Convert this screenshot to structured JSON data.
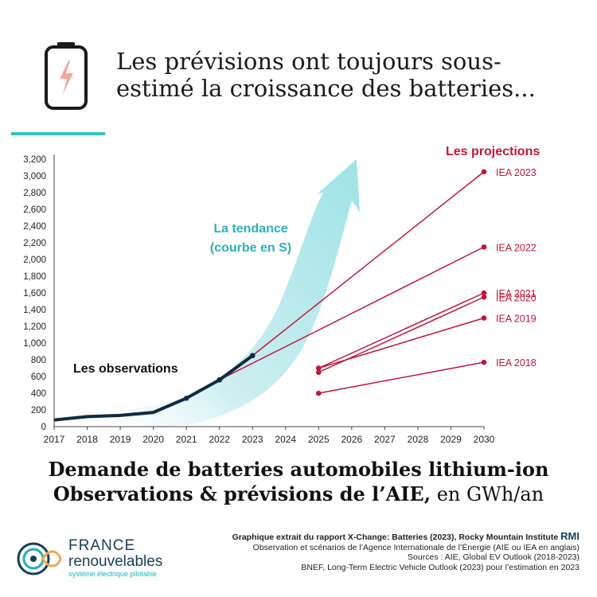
{
  "header": {
    "title_line1": "Les prévisions ont toujours sous-",
    "title_line2": "estimé la croissance des batteries..."
  },
  "chart_data": {
    "type": "line",
    "title": "",
    "xlabel": "",
    "ylabel": "",
    "x_ticks": [
      "2017",
      "2018",
      "2019",
      "2020",
      "2021",
      "2022",
      "2023",
      "2024",
      "2025",
      "2026",
      "2027",
      "2028",
      "2029",
      "2030"
    ],
    "y_ticks": [
      "0",
      "200",
      "400",
      "600",
      "800",
      "1,000",
      "1,200",
      "1,400",
      "1,600",
      "1,800",
      "2,000",
      "2,200",
      "2,400",
      "2,600",
      "2,800",
      "3,000",
      "3,200"
    ],
    "ylim": [
      0,
      3200
    ],
    "xlim": [
      2017,
      2030
    ],
    "grid": false,
    "observations": {
      "label": "Les observations",
      "color": "#0f2a44",
      "x": [
        2017,
        2018,
        2019,
        2020,
        2021,
        2022,
        2023
      ],
      "y": [
        80,
        120,
        135,
        170,
        340,
        560,
        850
      ]
    },
    "trend": {
      "label_line1": "La tendance",
      "label_line2": "(courbe en S)",
      "color": "#7fdbe0"
    },
    "projections_label": "Les projections",
    "projection_color": "#c0173c",
    "projections": [
      {
        "name": "IEA 2023",
        "x": [
          2023,
          2030
        ],
        "y": [
          850,
          3050
        ]
      },
      {
        "name": "IEA 2022",
        "x": [
          2022,
          2030
        ],
        "y": [
          560,
          2150
        ]
      },
      {
        "name": "IEA 2021",
        "x": [
          2025,
          2030
        ],
        "y": [
          700,
          1600
        ]
      },
      {
        "name": "IEA 2020",
        "x": [
          2025,
          2030
        ],
        "y": [
          650,
          1550
        ]
      },
      {
        "name": "IEA 2019",
        "x": [
          2025,
          2030
        ],
        "y": [
          700,
          1300
        ]
      },
      {
        "name": "IEA 2018",
        "x": [
          2025,
          2030
        ],
        "y": [
          400,
          770
        ]
      }
    ]
  },
  "bottom_title": {
    "line1": "Demande de batteries automobiles lithium-ion",
    "line2_main": "Observations & prévisions de l’AIE,",
    "line2_unit": " en GWh/an"
  },
  "logo": {
    "line1": "FRANCE",
    "line2": "renouvelables",
    "line3": "système électrique pilotable"
  },
  "footer": {
    "source_bold": "Graphique extrait du rapport X-Change: Batteries (2023), Rocky Mountain Institute",
    "rmi": "RMI",
    "line2": "Observation et scénarios de l’Agence Internationale de l’Énergie (AIE ou IEA en anglais)",
    "line3": "Sources : AIE, Global EV Outlook (2018-2023)",
    "line4": "BNEF, Long-Term Electric Vehicle Outlook (2023) pour l’estimation en 2023"
  },
  "colors": {
    "accent": "#2ec4c7",
    "battery_outline": "#1a1a1a",
    "bolt": "#f4a9a0"
  }
}
